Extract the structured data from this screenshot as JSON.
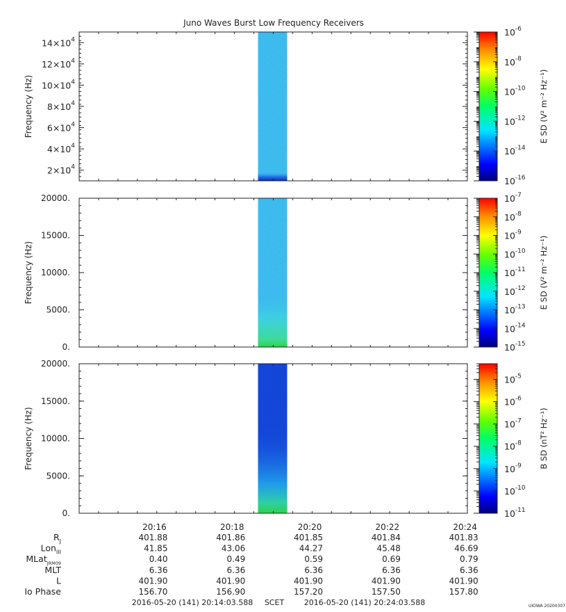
{
  "title": "Juno Waves Burst Low Frequency Receivers",
  "footer": {
    "start": "2016-05-20 (141) 20:14:03.588",
    "mid": "SCET",
    "end": "2016-05-20 (141) 20:24:03.588",
    "stamp": "UIOWA 20200307"
  },
  "colors": {
    "axis": "#222222",
    "e_field_band": "#3cc4ee",
    "b_field_band": "#1a3fe0",
    "low_freq_green": "#2ed24a"
  },
  "chart_data": [
    {
      "type": "heatmap",
      "panel": "E field, upper receiver",
      "ylabel": "Frequency (Hz)",
      "ylim": [
        10000,
        150000
      ],
      "ytick_values": [
        20000,
        40000,
        60000,
        80000,
        100000,
        120000,
        140000
      ],
      "ytick_mantissa": [
        "2",
        "4",
        "6",
        "8",
        "10",
        "12",
        "14"
      ],
      "ytick_exponent": "4",
      "colorbar_label": "E SD (V² m⁻² Hz⁻¹)",
      "colorbar_log_range": [
        -16,
        -6
      ],
      "colorbar_exponents": [
        "-6",
        "-8",
        "-10",
        "-12",
        "-14",
        "-16"
      ],
      "colorbar_log_values": [
        -6,
        -8,
        -10,
        -12,
        -14,
        -16
      ],
      "data_time_range": [
        "20:18:40",
        "20:19:25"
      ],
      "dominant_log_level": -13.3
    },
    {
      "type": "heatmap",
      "panel": "E field, lower receiver",
      "ylabel": "Frequency (Hz)",
      "ylim": [
        0,
        20000
      ],
      "ytick_values": [
        0,
        5000,
        10000,
        15000,
        20000
      ],
      "ytick_labels": [
        "0.",
        "5000.",
        "10000.",
        "15000.",
        "20000."
      ],
      "colorbar_label": "E SD (V² m⁻² Hz⁻¹)",
      "colorbar_log_range": [
        -15,
        -7
      ],
      "colorbar_exponents": [
        "-7",
        "-8",
        "-9",
        "-10",
        "-11",
        "-12",
        "-13",
        "-14",
        "-15"
      ],
      "colorbar_log_values": [
        -7,
        -8,
        -9,
        -10,
        -11,
        -12,
        -13,
        -14,
        -15
      ],
      "data_time_range": [
        "20:18:40",
        "20:19:25"
      ],
      "dominant_log_level": -13.0
    },
    {
      "type": "heatmap",
      "panel": "B field",
      "ylabel": "Frequency (Hz)",
      "ylim": [
        0,
        20000
      ],
      "ytick_values": [
        0,
        5000,
        10000,
        15000,
        20000
      ],
      "ytick_labels": [
        "0.",
        "5000.",
        "10000.",
        "15000.",
        "20000."
      ],
      "colorbar_label": "B SD (nT² Hz⁻¹)",
      "colorbar_log_range": [
        -11,
        -4.3
      ],
      "colorbar_exponents": [
        "-5",
        "-6",
        "-7",
        "-8",
        "-9",
        "-10",
        "-11"
      ],
      "colorbar_log_values": [
        -5,
        -6,
        -7,
        -8,
        -9,
        -10,
        -11
      ],
      "data_time_range": [
        "20:18:40",
        "20:19:25"
      ],
      "dominant_log_level": -10.4
    }
  ],
  "time_axis": {
    "range": [
      "20:14:03.588",
      "20:24:03.588"
    ],
    "tick_labels": [
      "20:16",
      "20:18",
      "20:20",
      "20:22",
      "20:24"
    ]
  },
  "ephemeris": {
    "rows": [
      {
        "label": "R",
        "sub": "J",
        "values": [
          "401.88",
          "401.86",
          "401.85",
          "401.84",
          "401.83"
        ]
      },
      {
        "label": "Lon",
        "sub": "III",
        "values": [
          "41.85",
          "43.06",
          "44.27",
          "45.48",
          "46.69"
        ]
      },
      {
        "label": "MLat",
        "sub": "JRM09",
        "values": [
          "0.40",
          "0.49",
          "0.59",
          "0.69",
          "0.79"
        ]
      },
      {
        "label": "MLT",
        "sub": "",
        "values": [
          "6.36",
          "6.36",
          "6.36",
          "6.36",
          "6.36"
        ]
      },
      {
        "label": "L",
        "sub": "",
        "values": [
          "401.90",
          "401.90",
          "401.90",
          "401.90",
          "401.90"
        ]
      },
      {
        "label": "Io Phase",
        "sub": "",
        "values": [
          "156.70",
          "156.90",
          "157.20",
          "157.50",
          "157.80"
        ]
      }
    ]
  }
}
